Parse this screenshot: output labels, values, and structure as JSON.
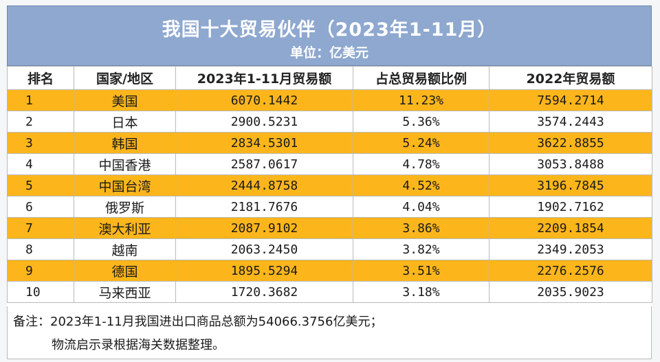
{
  "title": "我国十大贸易伙伴（2023年1-11月）",
  "subtitle": "单位：亿美元",
  "headers": [
    "排名",
    "国家/地区",
    "2023年1-11月贸易额",
    "占总贸易额比例",
    "2022年贸易额"
  ],
  "rows": [
    {
      "rank": "1",
      "name": "美国",
      "trade2023": "6070.1442",
      "share": "11.23%",
      "trade2022": "7594.2714"
    },
    {
      "rank": "2",
      "name": "日本",
      "trade2023": "2900.5231",
      "share": "5.36%",
      "trade2022": "3574.2443"
    },
    {
      "rank": "3",
      "name": "韩国",
      "trade2023": "2834.5301",
      "share": "5.24%",
      "trade2022": "3622.8855"
    },
    {
      "rank": "4",
      "name": "中国香港",
      "trade2023": "2587.0617",
      "share": "4.78%",
      "trade2022": "3053.8488"
    },
    {
      "rank": "5",
      "name": "中国台湾",
      "trade2023": "2444.8758",
      "share": "4.52%",
      "trade2022": "3196.7845"
    },
    {
      "rank": "6",
      "name": "俄罗斯",
      "trade2023": "2181.7676",
      "share": "4.04%",
      "trade2022": "1902.7162"
    },
    {
      "rank": "7",
      "name": "澳大利亚",
      "trade2023": "2087.9102",
      "share": "3.86%",
      "trade2022": "2209.1854"
    },
    {
      "rank": "8",
      "name": "越南",
      "trade2023": "2063.2450",
      "share": "3.82%",
      "trade2022": "2349.2053"
    },
    {
      "rank": "9",
      "name": "德国",
      "trade2023": "1895.5294",
      "share": "3.51%",
      "trade2022": "2276.2576"
    },
    {
      "rank": "10",
      "name": "马来西亚",
      "trade2023": "1720.3682",
      "share": "3.18%",
      "trade2022": "2035.9023"
    }
  ],
  "notes": {
    "line1": "备注：2023年1-11月我国进出口商品总额为54066.3756亿美元；",
    "line2": "物流启示录根据海关数据整理。"
  },
  "colors": {
    "header_band": "#8ea8cf",
    "highlight_row": "#fcb61c"
  }
}
